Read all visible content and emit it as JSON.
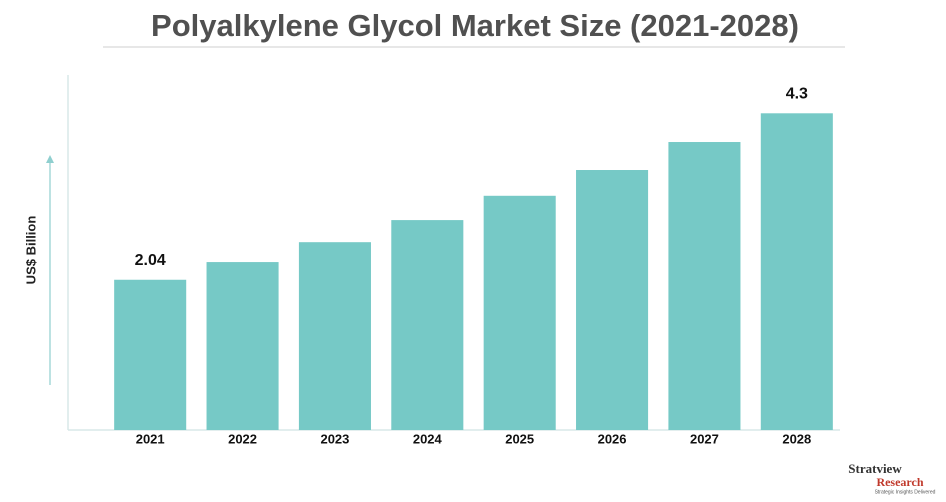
{
  "chart_data": {
    "type": "bar",
    "title": "Polyalkylene Glycol Market Size (2021-2028)",
    "y_label": "US$ Billion",
    "categories": [
      "2021",
      "2022",
      "2023",
      "2024",
      "2025",
      "2026",
      "2027",
      "2028"
    ],
    "values": [
      2.04,
      2.28,
      2.55,
      2.85,
      3.18,
      3.53,
      3.91,
      4.3
    ],
    "value_labels": [
      "2.04",
      null,
      null,
      null,
      null,
      null,
      null,
      "4.3"
    ],
    "color": "#76c9c6",
    "ylim": [
      0,
      4.82
    ]
  },
  "logo": {
    "name": "Stratview",
    "name2": "Research",
    "tagline": "Strategic Insights Delivered"
  }
}
